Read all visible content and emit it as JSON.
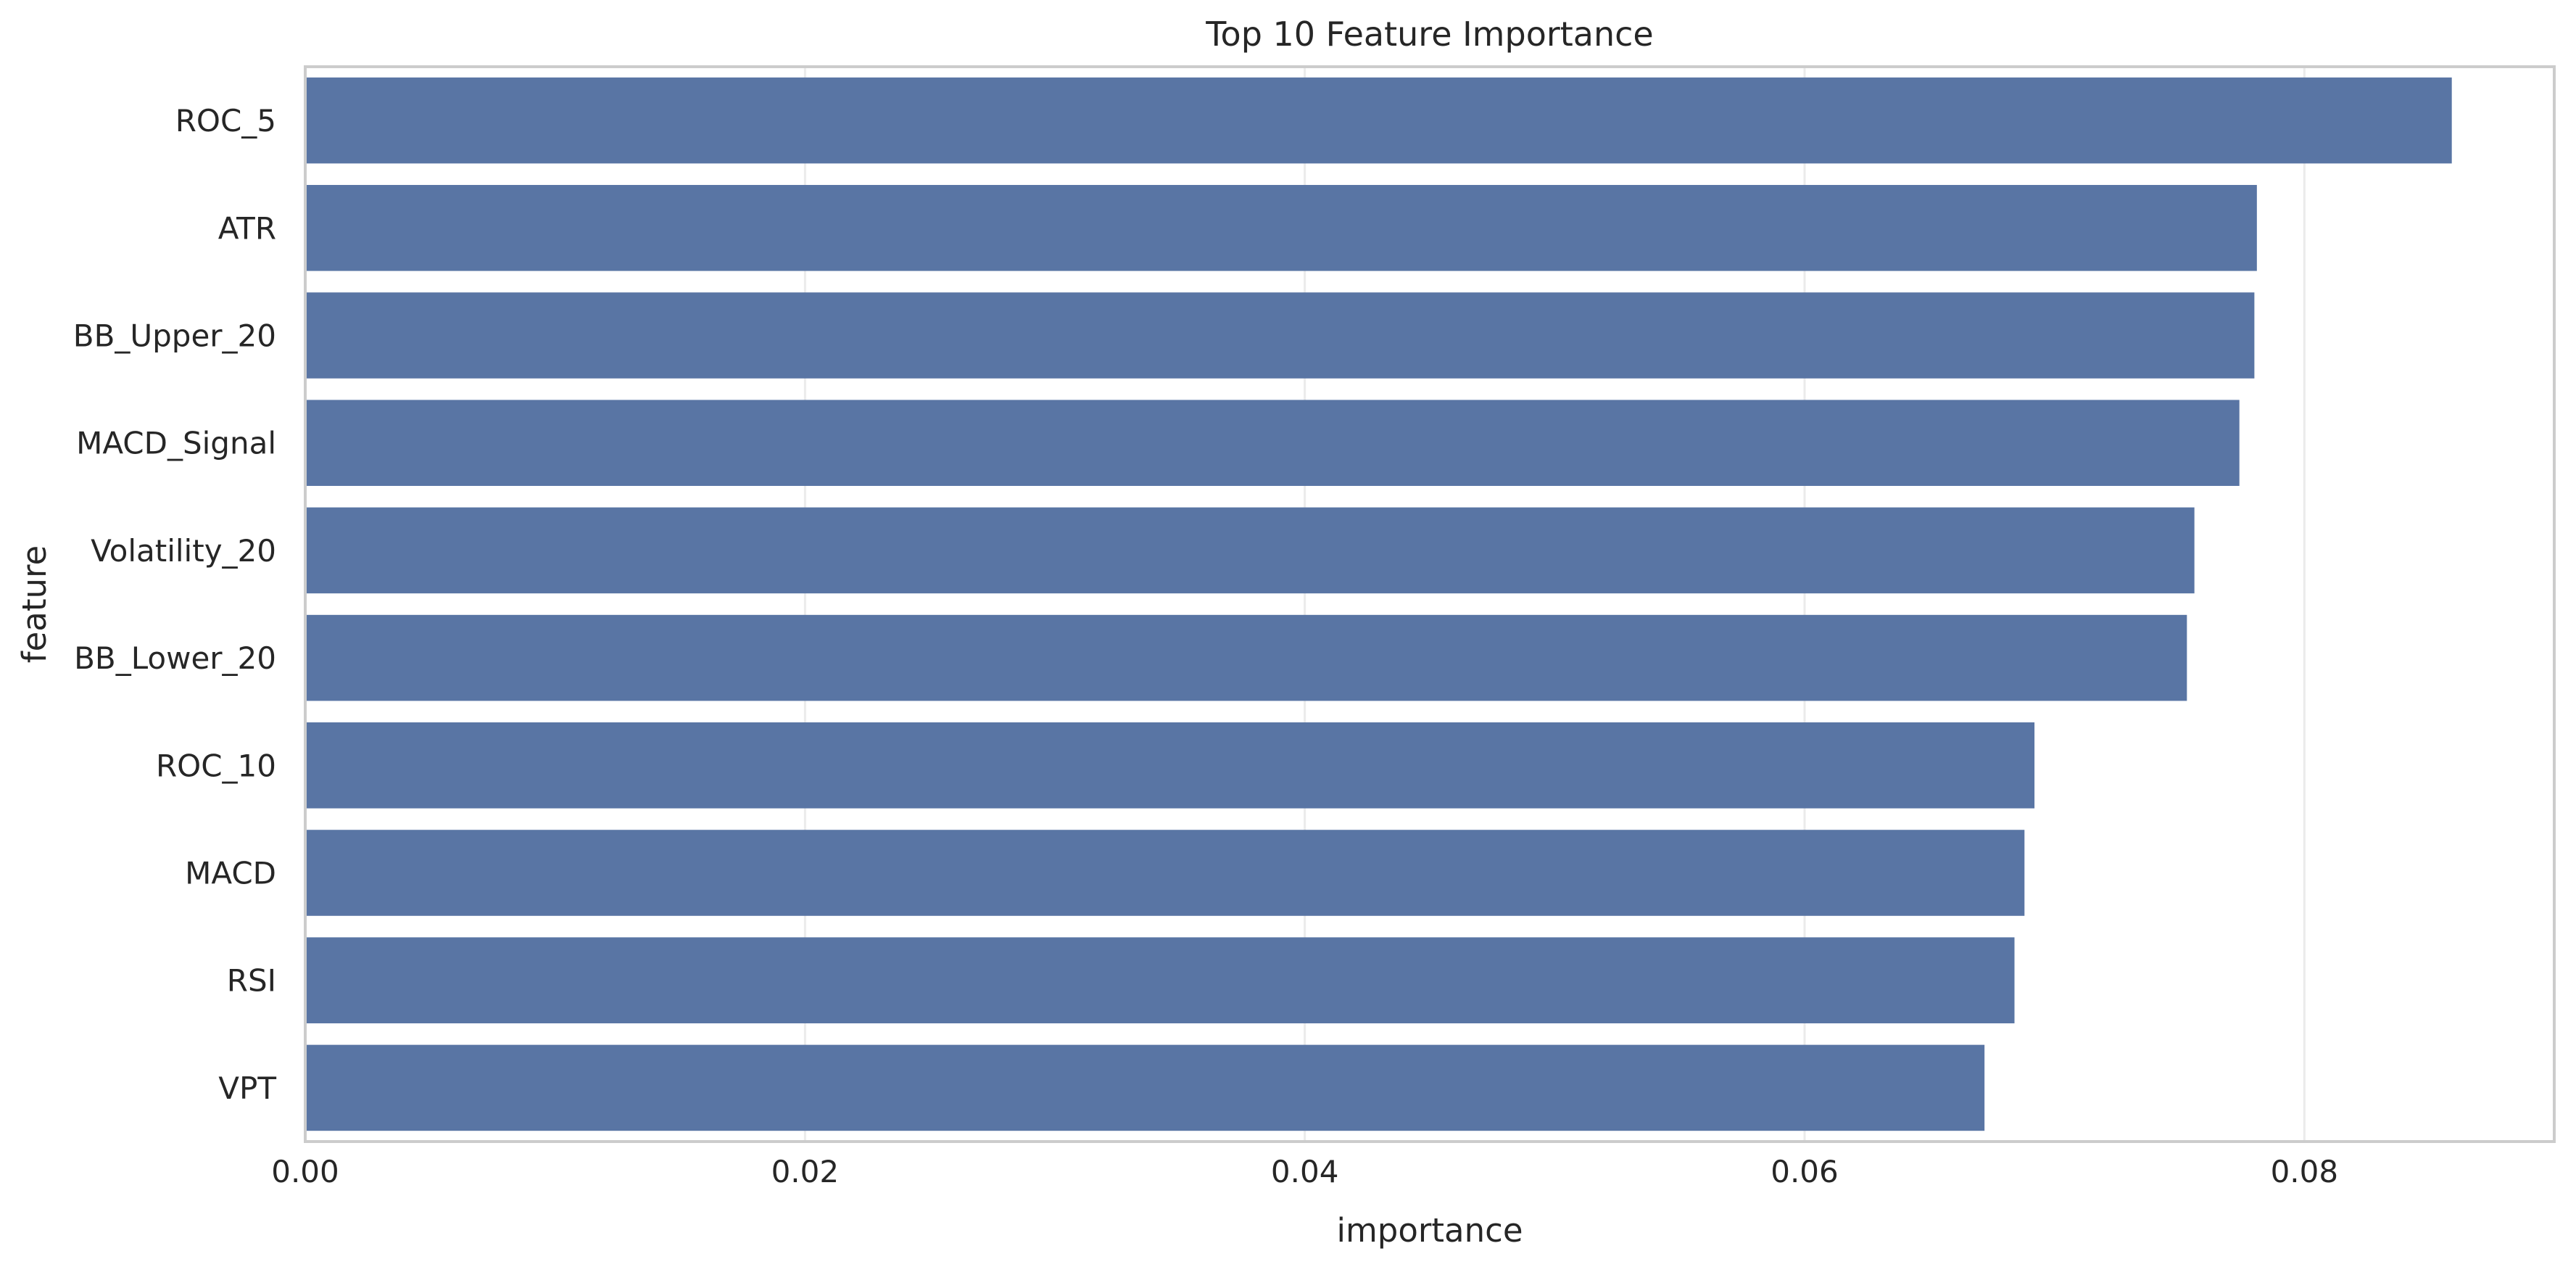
{
  "chart_data": {
    "type": "bar",
    "orientation": "horizontal",
    "title": "Top 10 Feature Importance",
    "xlabel": "importance",
    "ylabel": "feature",
    "categories": [
      "ROC_5",
      "ATR",
      "BB_Upper_20",
      "MACD_Signal",
      "Volatility_20",
      "BB_Lower_20",
      "ROC_10",
      "MACD",
      "RSI",
      "VPT"
    ],
    "values": [
      0.0859,
      0.0781,
      0.078,
      0.0774,
      0.0756,
      0.0753,
      0.0692,
      0.0688,
      0.0684,
      0.0672
    ],
    "xlim": [
      0,
      0.09
    ],
    "xticks": [
      0.0,
      0.02,
      0.04,
      0.06,
      0.08
    ],
    "xtick_labels": [
      "0.00",
      "0.02",
      "0.04",
      "0.06",
      "0.08"
    ],
    "grid": true,
    "grid_axis": "x",
    "legend": false,
    "bar_color": "#5975a4",
    "grid_color": "#ebebeb",
    "frame_color": "#cccccc"
  }
}
